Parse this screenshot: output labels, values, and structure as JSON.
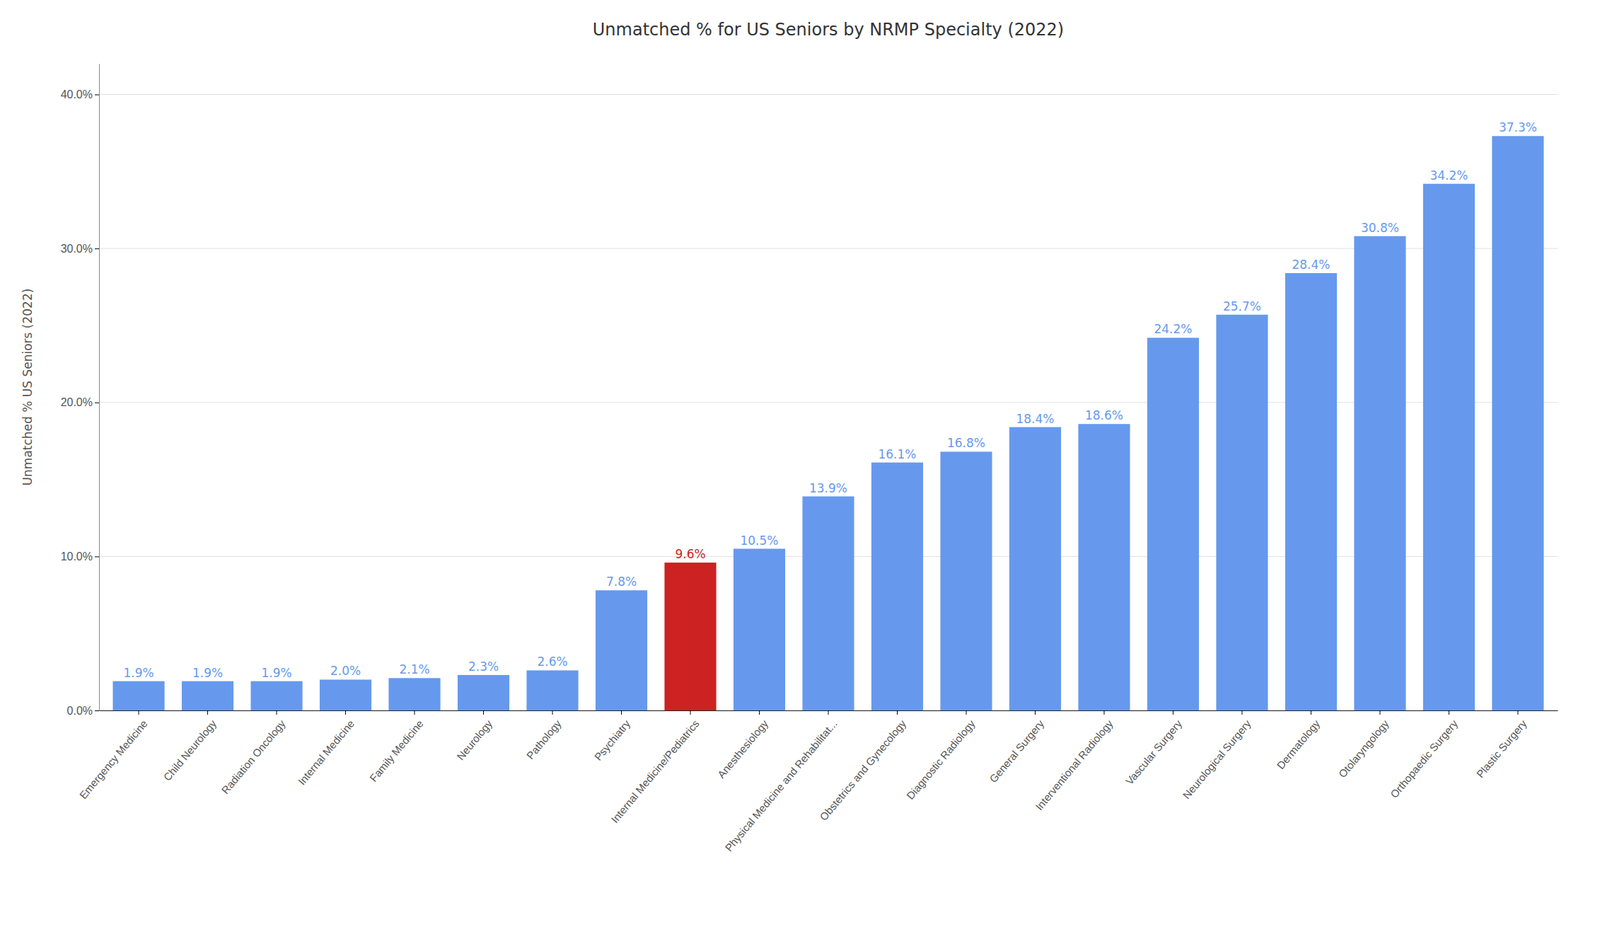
{
  "chart_data": {
    "type": "bar",
    "title": "Unmatched % for US Seniors by NRMP Specialty (2022)",
    "ylabel": "Unmatched % US Seniors (2022)",
    "categories": [
      "Emergency Medicine",
      "Child Neurology",
      "Radiation Oncology",
      "Internal Medicine",
      "Family Medicine",
      "Neurology",
      "Pathology",
      "Psychiatry",
      "Internal Medicine/Pediatrics",
      "Anesthesiology",
      "Physical Medicine and Rehabilitat...",
      "Obstetrics and Gynecology",
      "Diagnostic Radiology",
      "General Surgery",
      "Interventional Radiology",
      "Vascular Surgery",
      "Neurological Surgery",
      "Dermatology",
      "Otolaryngology",
      "Orthopaedic Surgery",
      "Plastic Surgery"
    ],
    "values": [
      1.9,
      1.9,
      1.9,
      2.0,
      2.1,
      2.3,
      2.6,
      7.8,
      9.6,
      10.5,
      13.9,
      16.1,
      16.8,
      18.4,
      18.6,
      24.2,
      25.7,
      28.4,
      30.8,
      34.2,
      37.3
    ],
    "value_labels": [
      "1.9%",
      "1.9%",
      "1.9%",
      "2.0%",
      "2.1%",
      "2.3%",
      "2.6%",
      "7.8%",
      "9.6%",
      "10.5%",
      "13.9%",
      "16.1%",
      "16.8%",
      "18.4%",
      "18.6%",
      "24.2%",
      "25.7%",
      "28.4%",
      "30.8%",
      "34.2%",
      "37.3%"
    ],
    "colors": [
      "#6699ee",
      "#6699ee",
      "#6699ee",
      "#6699ee",
      "#6699ee",
      "#6699ee",
      "#6699ee",
      "#6699ee",
      "#cc2222",
      "#6699ee",
      "#6699ee",
      "#6699ee",
      "#6699ee",
      "#6699ee",
      "#6699ee",
      "#6699ee",
      "#6699ee",
      "#6699ee",
      "#6699ee",
      "#6699ee",
      "#6699ee"
    ],
    "ylim": [
      0,
      42
    ],
    "yticks": [
      {
        "value": 0,
        "label": "0.0%"
      },
      {
        "value": 10,
        "label": "10.0%"
      },
      {
        "value": 20,
        "label": "20.0%"
      },
      {
        "value": 30,
        "label": "30.0%"
      },
      {
        "value": 40,
        "label": "40.0%"
      }
    ],
    "grid": true,
    "data_labels": true
  }
}
